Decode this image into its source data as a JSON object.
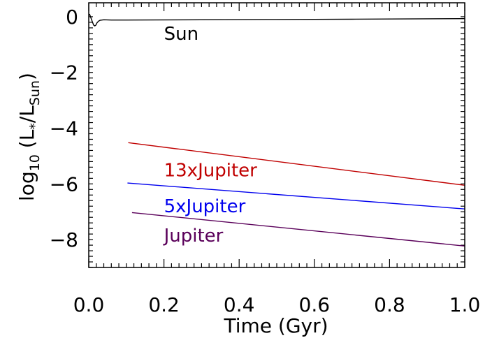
{
  "chart_data": {
    "type": "line",
    "xlabel": "Time (Gyr)",
    "ylabel_parts": {
      "prefix": "log",
      "sub10": "10",
      "open": " (L",
      "star": "*",
      "slash": "/L",
      "sun": "Sun",
      "close": ")"
    },
    "xlim": [
      0.0,
      1.0
    ],
    "ylim": [
      -9.0,
      0.5
    ],
    "x_ticks": [
      0.0,
      0.2,
      0.4,
      0.6,
      0.8,
      1.0
    ],
    "x_tick_labels": [
      "0.0",
      "0.2",
      "0.4",
      "0.6",
      "0.8",
      "1.0"
    ],
    "y_ticks": [
      0,
      -2,
      -4,
      -6,
      -8
    ],
    "y_tick_labels": [
      "0",
      "−2",
      "−4",
      "−6",
      "−8"
    ],
    "grid": false,
    "series": [
      {
        "name": "Sun",
        "color": "#000000",
        "x": [
          0.002,
          0.006,
          0.01,
          0.013,
          0.016,
          0.019,
          0.022,
          0.026,
          0.03,
          0.04,
          0.06,
          0.1,
          0.3,
          0.5,
          0.7,
          1.0
        ],
        "y": [
          0.1,
          -0.05,
          -0.2,
          -0.3,
          -0.33,
          -0.3,
          -0.22,
          -0.16,
          -0.13,
          -0.11,
          -0.12,
          -0.12,
          -0.11,
          -0.1,
          -0.09,
          -0.07
        ]
      },
      {
        "name": "13xJupiter",
        "color": "#c00000",
        "x": [
          0.105,
          1.0
        ],
        "y": [
          -4.52,
          -6.05
        ]
      },
      {
        "name": "5xJupiter",
        "color": "#0000ee",
        "x": [
          0.103,
          1.0
        ],
        "y": [
          -5.97,
          -6.9
        ]
      },
      {
        "name": "Jupiter",
        "color": "#5a005a",
        "x": [
          0.115,
          1.0
        ],
        "y": [
          -7.03,
          -8.23
        ]
      }
    ]
  }
}
